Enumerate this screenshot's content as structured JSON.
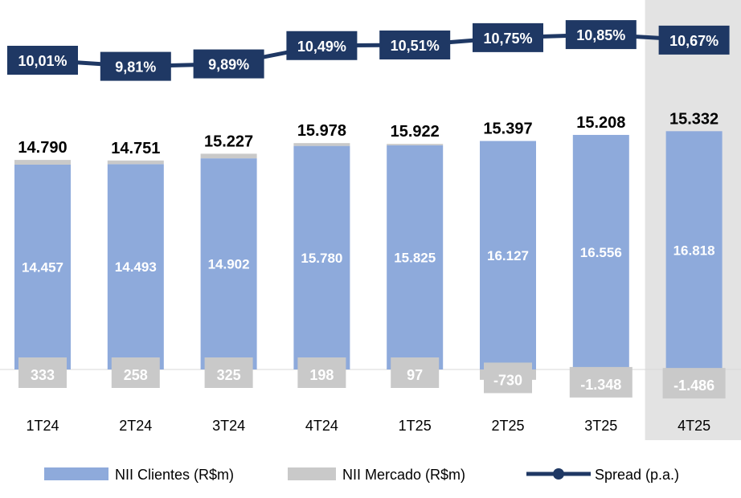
{
  "chart_data": {
    "type": "bar",
    "categories": [
      "1T24",
      "2T24",
      "3T24",
      "4T24",
      "1T25",
      "2T25",
      "3T25",
      "4T25"
    ],
    "highlighted_category": "4T25",
    "series": [
      {
        "name": "NII Clientes (R$m)",
        "type": "bar",
        "color": "#8eaadb",
        "values": [
          14457,
          14493,
          14902,
          15780,
          15825,
          16127,
          16556,
          16818
        ]
      },
      {
        "name": "NII Mercado (R$m)",
        "type": "bar",
        "color": "#c9c9c9",
        "values": [
          333,
          258,
          325,
          198,
          97,
          -730,
          -1348,
          -1486
        ]
      },
      {
        "name": "Spread (p.a.)",
        "type": "line",
        "color": "#1f3864",
        "values": [
          10.01,
          9.81,
          9.89,
          10.49,
          10.51,
          10.75,
          10.85,
          10.67
        ],
        "labels": [
          "10,01%",
          "9,81%",
          "9,89%",
          "10,49%",
          "10,51%",
          "10,75%",
          "10,85%",
          "10,67%"
        ]
      }
    ],
    "totals": [
      14790,
      14751,
      15227,
      15978,
      15922,
      15397,
      15208,
      15332
    ],
    "total_labels": [
      "14.790",
      "14.751",
      "15.227",
      "15.978",
      "15.922",
      "15.397",
      "15.208",
      "15.332"
    ],
    "clientes_labels": [
      "14.457",
      "14.493",
      "14.902",
      "15.780",
      "15.825",
      "16.127",
      "16.556",
      "16.818"
    ],
    "mercado_labels": [
      "333",
      "258",
      "325",
      "198",
      "97",
      "-730",
      "-1.348",
      "-1.486"
    ],
    "legend": [
      "NII Clientes (R$m)",
      "NII Mercado (R$m)",
      "Spread (p.a.)"
    ],
    "legend_position": "bottom"
  }
}
